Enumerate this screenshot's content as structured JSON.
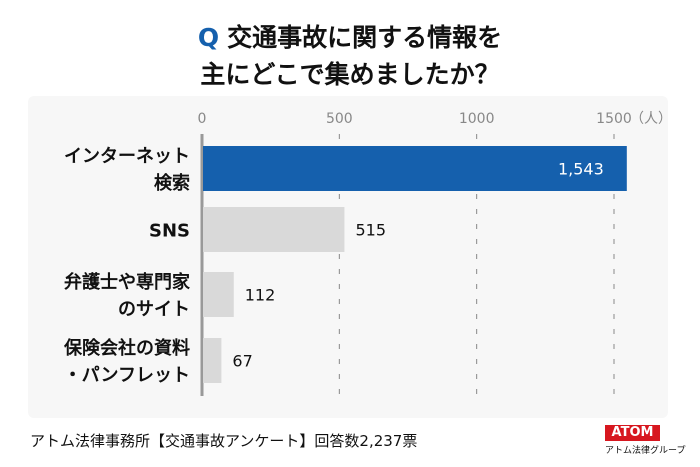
{
  "title": {
    "q": "Q",
    "line1": "交通事故に関する情報を",
    "line2": "主にどこで集めましたか？"
  },
  "chart_data": {
    "type": "bar",
    "orientation": "horizontal",
    "categories": [
      "インターネット\n検索",
      "SNS",
      "弁護士や専門家\nのサイト",
      "保険会社の資料\n・パンフレット"
    ],
    "values": [
      1543,
      515,
      112,
      67
    ],
    "value_labels": [
      "1,543",
      "515",
      "112",
      "67"
    ],
    "xticks": [
      0,
      500,
      1000,
      1500
    ],
    "xtick_labels": [
      "0",
      "500",
      "1000",
      "1500"
    ],
    "unit": "（人）",
    "xlim": [
      0,
      1500
    ],
    "grid": "dashed vertical",
    "colors": [
      "#1560ad",
      "#d9d9d9",
      "#d9d9d9",
      "#d9d9d9"
    ]
  },
  "footer": {
    "source": "アトム法律事務所【交通事故アンケート】回答数2,237票",
    "logo": "ATOM",
    "logo_sub": "アトム法律グループ"
  }
}
